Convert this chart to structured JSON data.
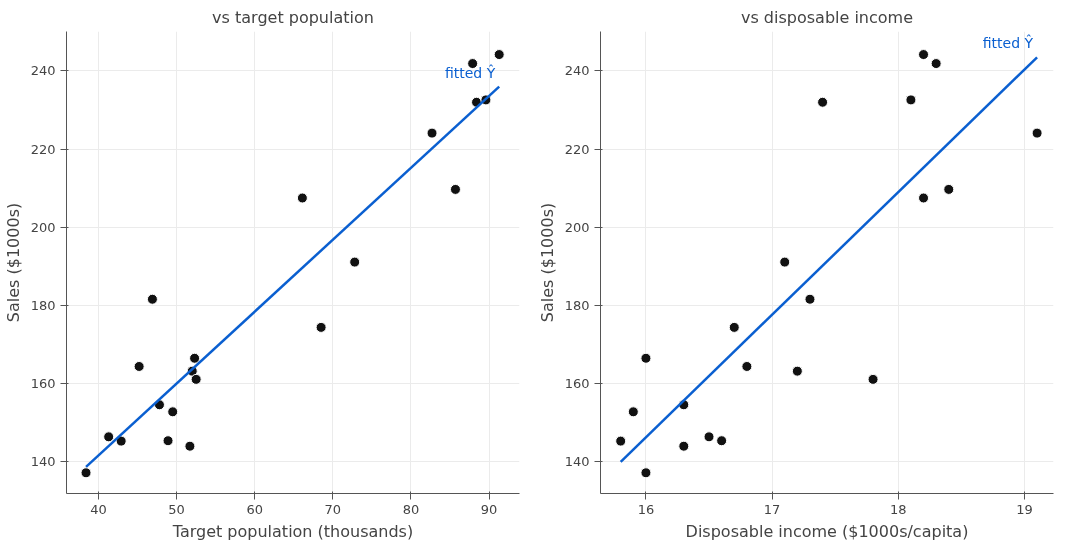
{
  "chart_data": [
    {
      "type": "scatter",
      "title": "vs target population",
      "xlabel": "Target population (thousands)",
      "ylabel": "Sales ($1000s)",
      "xlim": [
        35.9,
        93.9
      ],
      "ylim": [
        131.9,
        250.1
      ],
      "xticks": [
        40,
        50,
        60,
        70,
        80,
        90
      ],
      "yticks": [
        140,
        160,
        180,
        200,
        220,
        240
      ],
      "grid": true,
      "legend": false,
      "series": [
        {
          "marker": "circle",
          "color": "#111111",
          "x": [
            68.5,
            45.2,
            91.3,
            47.8,
            46.9,
            66.1,
            49.5,
            52.0,
            48.9,
            38.4,
            87.9,
            72.8,
            88.4,
            42.9,
            52.5,
            85.7,
            41.3,
            51.7,
            89.6,
            82.7,
            52.3
          ],
          "values": [
            174.4,
            164.4,
            244.2,
            154.6,
            181.6,
            207.5,
            152.8,
            163.2,
            145.4,
            137.2,
            241.9,
            191.1,
            232.0,
            145.3,
            161.1,
            209.7,
            146.4,
            144.0,
            232.6,
            224.1,
            166.5
          ]
        },
        {
          "type": "line",
          "name": "fitted Ŷ",
          "color": "#0a5fd0",
          "line_style": "solid",
          "x": [
            38.4,
            91.3
          ],
          "values": [
            138.7,
            236.0
          ]
        }
      ]
    },
    {
      "type": "scatter",
      "title": "vs disposable income",
      "xlabel": "Disposable income ($1000s/capita)",
      "ylabel": "Sales ($1000s)",
      "xlim": [
        15.64,
        19.23
      ],
      "ylim": [
        131.9,
        250.1
      ],
      "xticks": [
        16,
        17,
        18,
        19
      ],
      "yticks": [
        140,
        160,
        180,
        200,
        220,
        240
      ],
      "grid": true,
      "legend": false,
      "series": [
        {
          "marker": "circle",
          "color": "#111111",
          "x": [
            16.7,
            16.8,
            18.2,
            16.3,
            17.3,
            18.2,
            15.9,
            17.2,
            16.6,
            16.0,
            18.3,
            17.1,
            17.4,
            15.8,
            17.8,
            18.4,
            16.5,
            16.3,
            18.1,
            19.1,
            16.0
          ],
          "values": [
            174.4,
            164.4,
            244.2,
            154.6,
            181.6,
            207.5,
            152.8,
            163.2,
            145.4,
            137.2,
            241.9,
            191.1,
            232.0,
            145.3,
            161.1,
            209.7,
            146.4,
            144.0,
            232.6,
            224.1,
            166.5
          ]
        },
        {
          "type": "line",
          "name": "fitted Ŷ",
          "color": "#0a5fd0",
          "line_style": "solid",
          "x": [
            15.8,
            19.1
          ],
          "values": [
            140.0,
            243.5
          ]
        }
      ]
    }
  ]
}
